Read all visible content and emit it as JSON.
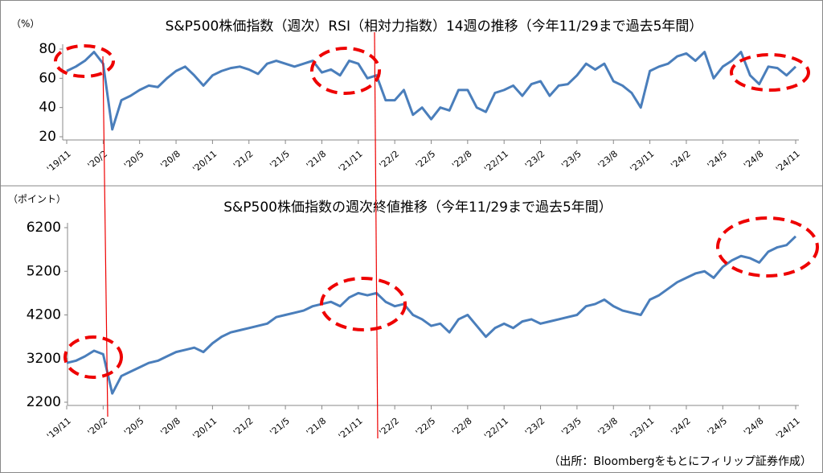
{
  "chart_data": [
    {
      "type": "line",
      "title": "S&P500株価指数（週次）RSI（相対力指数）14週の推移（今年11/29まで過去5年間）",
      "y_unit": "（%）",
      "categories": [
        "'19/11",
        null,
        null,
        null,
        "'20/2",
        null,
        null,
        null,
        "'20/5",
        null,
        null,
        null,
        "'20/8",
        null,
        null,
        null,
        "'20/11",
        null,
        null,
        null,
        "'21/2",
        null,
        null,
        null,
        "'21/5",
        null,
        null,
        null,
        "'21/8",
        null,
        null,
        null,
        "'21/11",
        null,
        null,
        null,
        "'22/2",
        null,
        null,
        null,
        "'22/5",
        null,
        null,
        null,
        "'22/8",
        null,
        null,
        null,
        "'22/11",
        null,
        null,
        null,
        "'23/2",
        null,
        null,
        null,
        "'23/5",
        null,
        null,
        null,
        "'23/8",
        null,
        null,
        null,
        "'23/11",
        null,
        null,
        null,
        "'24/2",
        null,
        null,
        null,
        "'24/5",
        null,
        null,
        null,
        "'24/8",
        null,
        null,
        null,
        "'24/11"
      ],
      "values": [
        65,
        68,
        72,
        78,
        70,
        25,
        45,
        48,
        52,
        55,
        54,
        60,
        65,
        68,
        62,
        55,
        62,
        65,
        67,
        68,
        66,
        63,
        70,
        72,
        70,
        68,
        70,
        72,
        64,
        66,
        62,
        72,
        70,
        60,
        62,
        45,
        45,
        52,
        35,
        40,
        32,
        40,
        38,
        52,
        52,
        40,
        37,
        50,
        52,
        55,
        48,
        56,
        58,
        48,
        55,
        56,
        62,
        70,
        66,
        70,
        58,
        55,
        50,
        40,
        65,
        68,
        70,
        75,
        77,
        72,
        78,
        60,
        68,
        72,
        78,
        62,
        56,
        68,
        67,
        62,
        68
      ],
      "color": "#4a7ebb",
      "ylim": [
        20,
        80
      ],
      "yticks": [
        20,
        40,
        60,
        80
      ],
      "grid": false
    },
    {
      "type": "line",
      "title": "S&P500株価指数の週次終値推移（今年11/29まで過去5年間）",
      "y_unit": "（ポイント）",
      "categories": [
        "'19/11",
        null,
        null,
        null,
        "'20/2",
        null,
        null,
        null,
        "'20/5",
        null,
        null,
        null,
        "'20/8",
        null,
        null,
        null,
        "'20/11",
        null,
        null,
        null,
        "'21/2",
        null,
        null,
        null,
        "'21/5",
        null,
        null,
        null,
        "'21/8",
        null,
        null,
        null,
        "'21/11",
        null,
        null,
        null,
        "'22/2",
        null,
        null,
        null,
        "'22/5",
        null,
        null,
        null,
        "'22/8",
        null,
        null,
        null,
        "'22/11",
        null,
        null,
        null,
        "'23/2",
        null,
        null,
        null,
        "'23/5",
        null,
        null,
        null,
        "'23/8",
        null,
        null,
        null,
        "'23/11",
        null,
        null,
        null,
        "'24/2",
        null,
        null,
        null,
        "'24/5",
        null,
        null,
        null,
        "'24/8",
        null,
        null,
        null,
        "'24/11"
      ],
      "values": [
        3100,
        3150,
        3250,
        3380,
        3300,
        2400,
        2800,
        2900,
        3000,
        3100,
        3150,
        3250,
        3350,
        3400,
        3450,
        3350,
        3550,
        3700,
        3800,
        3850,
        3900,
        3950,
        4000,
        4150,
        4200,
        4250,
        4300,
        4400,
        4450,
        4500,
        4400,
        4600,
        4700,
        4650,
        4700,
        4500,
        4400,
        4450,
        4200,
        4100,
        3950,
        4000,
        3800,
        4100,
        4200,
        3950,
        3700,
        3900,
        4000,
        3900,
        4050,
        4100,
        4000,
        4050,
        4100,
        4150,
        4200,
        4400,
        4450,
        4550,
        4400,
        4300,
        4250,
        4200,
        4550,
        4650,
        4800,
        4950,
        5050,
        5150,
        5200,
        5050,
        5300,
        5450,
        5550,
        5500,
        5400,
        5650,
        5750,
        5800,
        6000
      ],
      "color": "#4a7ebb",
      "ylim": [
        2200,
        6200
      ],
      "yticks": [
        2200,
        3200,
        4200,
        5200,
        6200
      ],
      "grid": false
    }
  ],
  "source": "（出所：Bloombergをもとにフィリップ証券作成）"
}
